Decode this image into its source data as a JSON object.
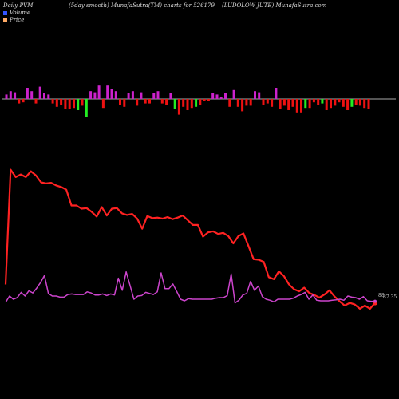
{
  "header": {
    "left": "Daily PVM",
    "middle": "(5day smooth) MunafaSutra(TM) charts for 526179",
    "right": "(LUDOLOW JUTE) MunafaSutra.com"
  },
  "legend": [
    {
      "label": "Volume",
      "color": "#3355ff"
    },
    {
      "label": "Price",
      "color": "#ffaa66"
    }
  ],
  "end_labels": {
    "a": "88",
    "b": "87.35"
  },
  "colors": {
    "price": "#ff2222",
    "pvm": "#cc44cc",
    "bar_pos": "#cc22cc",
    "bar_neg": "#ee1111",
    "bar_green": "#22ee22",
    "baseline": "#aaaaaa",
    "background": "#000000"
  },
  "chart_data": {
    "type": "line",
    "price": [
      28,
      246,
      232,
      237,
      232,
      243,
      235,
      222,
      220,
      221,
      216,
      213,
      208,
      178,
      178,
      172,
      173,
      166,
      157,
      175,
      159,
      172,
      173,
      163,
      160,
      162,
      153,
      134,
      158,
      154,
      155,
      153,
      156,
      152,
      155,
      159,
      150,
      141,
      141,
      119,
      127,
      129,
      124,
      126,
      120,
      106,
      120,
      125,
      101,
      76,
      75,
      71,
      42,
      38,
      53,
      44,
      28,
      19,
      15,
      22,
      12,
      8,
      3,
      9,
      17,
      5,
      -4,
      -12,
      -7,
      -10,
      -18,
      -12,
      -18,
      -7
    ],
    "pvm": [
      -6,
      6,
      0,
      3,
      13,
      6,
      16,
      12,
      21,
      32,
      45,
      11,
      6,
      6,
      4,
      4,
      9,
      10,
      9,
      9,
      9,
      14,
      12,
      8,
      8,
      10,
      7,
      10,
      8,
      40,
      17,
      52,
      26,
      0,
      6,
      7,
      13,
      11,
      9,
      14,
      50,
      20,
      20,
      29,
      15,
      0,
      -3,
      1,
      0,
      0,
      0,
      0,
      0,
      0,
      2,
      3,
      3,
      7,
      48,
      -7,
      -2,
      8,
      11,
      34,
      17,
      25,
      5,
      0,
      -2,
      -5,
      0,
      0,
      0,
      0,
      2,
      6,
      9,
      13,
      0,
      8,
      -2,
      -3,
      -3,
      -3,
      -2,
      -1,
      0,
      -2,
      6,
      4,
      3,
      0,
      5,
      -3,
      -4,
      -4
    ],
    "volume": [
      4,
      7,
      6,
      -4,
      -3,
      10,
      7,
      -4,
      11,
      5,
      4,
      -4,
      -7,
      -5,
      -9,
      -9,
      -8,
      -10,
      -6,
      -16,
      7,
      6,
      12,
      -8,
      12,
      9,
      7,
      -5,
      -7,
      5,
      7,
      -6,
      6,
      -4,
      -4,
      5,
      7,
      -4,
      -5,
      5,
      -9,
      -14,
      -7,
      -10,
      -8,
      -7,
      -5,
      -2,
      -2,
      5,
      4,
      2,
      5,
      -7,
      8,
      -7,
      -11,
      -6,
      -6,
      7,
      6,
      -5,
      -4,
      -7,
      10,
      -9,
      -6,
      -10,
      -7,
      -12,
      -12,
      -8,
      -8,
      -3,
      -5,
      -4,
      -10,
      -8,
      -6,
      -3,
      -7,
      -10,
      -7,
      -5,
      -6,
      -8,
      -9
    ],
    "volume_green_idx": [
      17,
      19,
      40,
      45,
      71,
      75,
      82
    ]
  }
}
